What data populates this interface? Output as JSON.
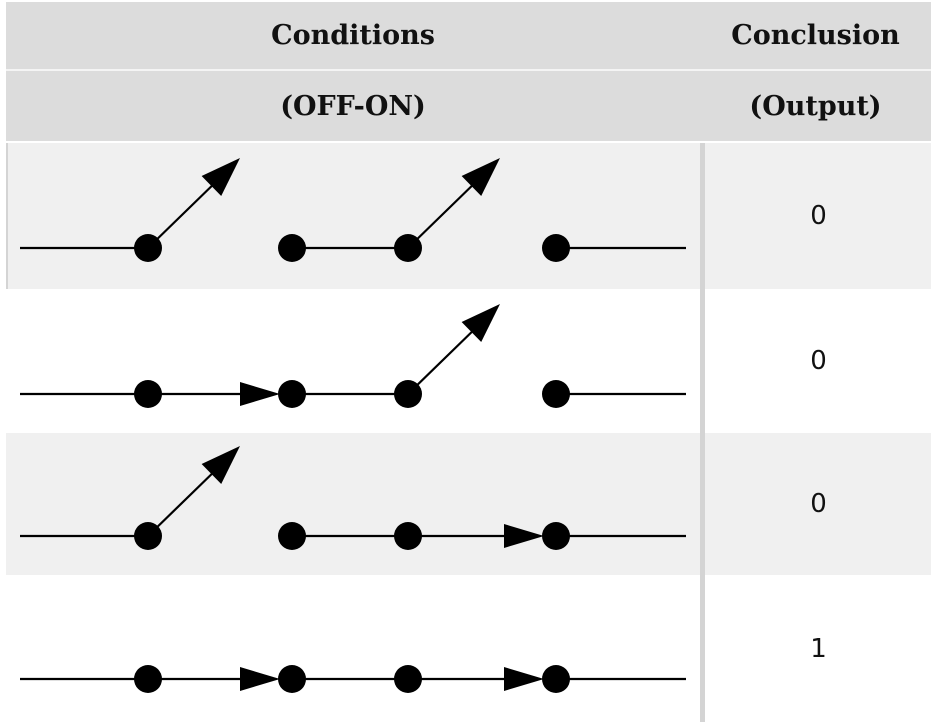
{
  "table": {
    "header": {
      "conditions": "Conditions",
      "conclusion": "Conclusion",
      "conditions_sub": "(OFF-ON)",
      "conclusion_sub": "(Output)"
    },
    "rows": [
      {
        "switches": [
          "open",
          "open",
          "open"
        ],
        "output": "0"
      },
      {
        "switches": [
          "closed",
          "open",
          "open"
        ],
        "output": "0"
      },
      {
        "switches": [
          "open",
          "open",
          "closed"
        ],
        "output": "0"
      },
      {
        "switches": [
          "closed",
          "open",
          "closed"
        ],
        "output": "1"
      }
    ]
  },
  "colors": {
    "header_bg": "#dcdcdc",
    "row_alt_bg": "#f0f0f0",
    "row_bg": "#ffffff",
    "ink": "#000000"
  }
}
